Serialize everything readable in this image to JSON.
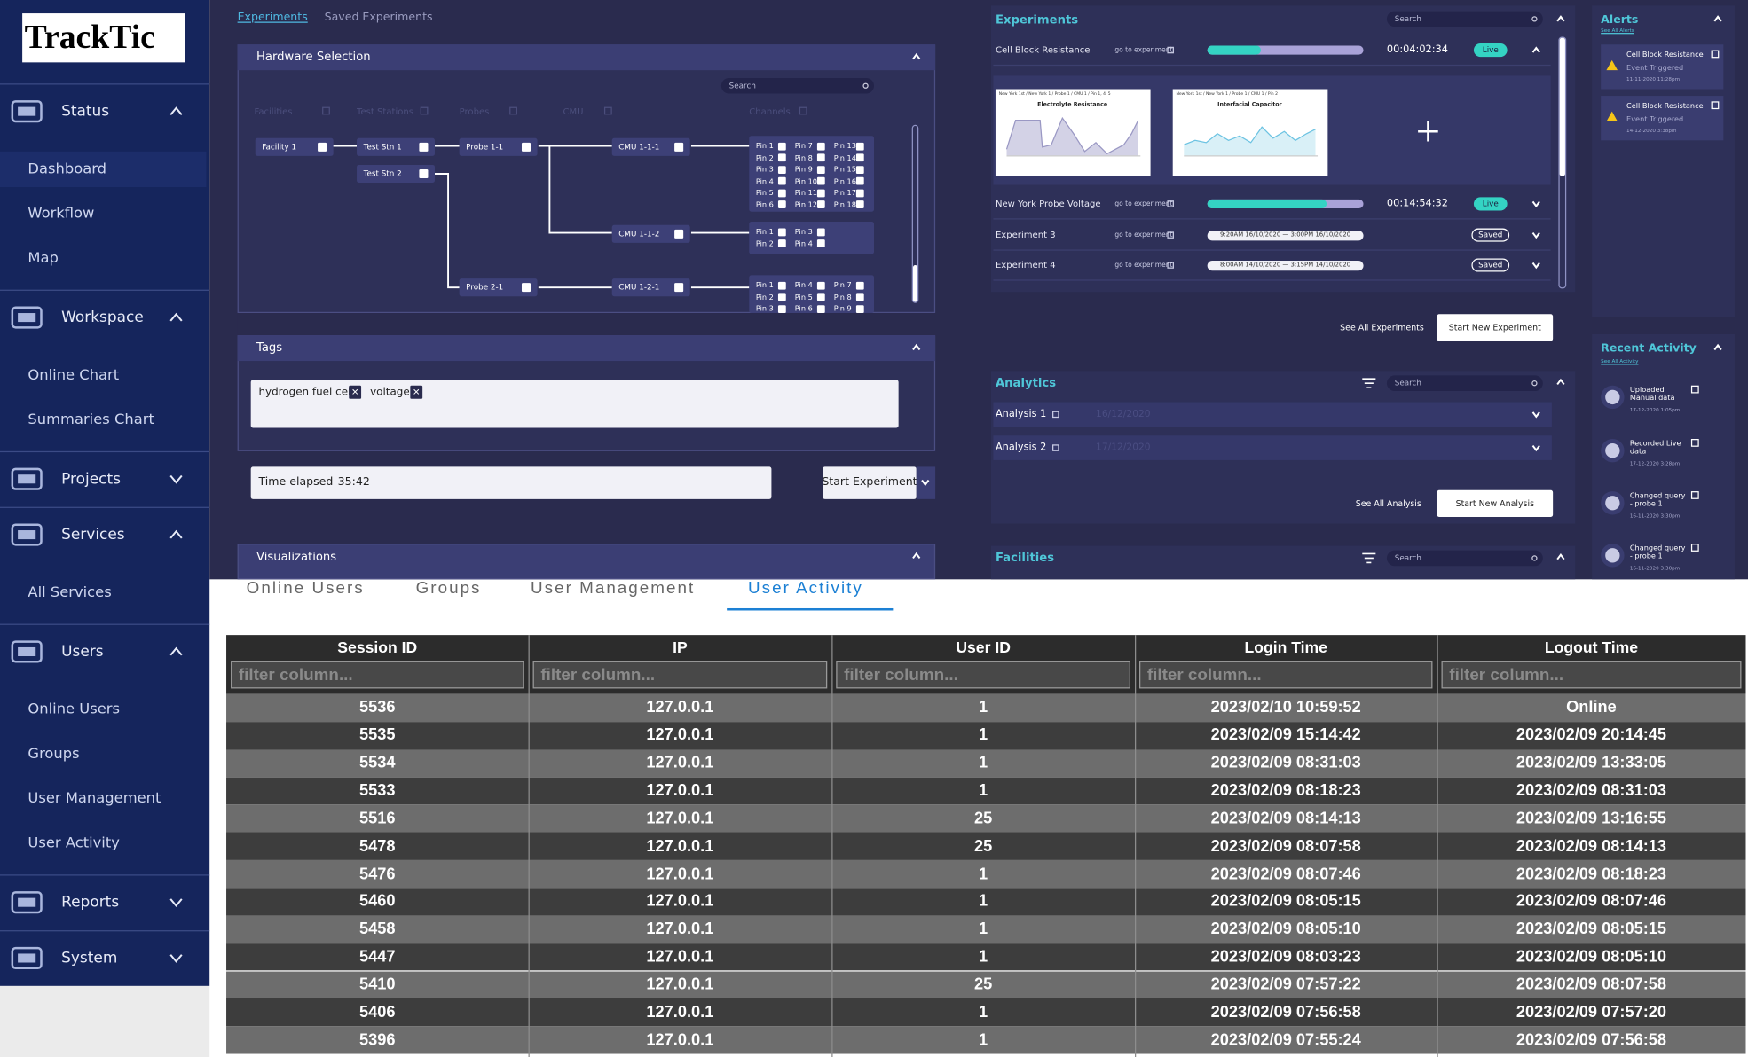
{
  "sidebar": {
    "logo": "TrackTic",
    "sections": [
      {
        "label": "Status",
        "expanded": true,
        "items": [
          "Dashboard",
          "Workflow",
          "Map"
        ]
      },
      {
        "label": "Workspace",
        "expanded": true,
        "items": [
          "Online Chart",
          "Summaries Chart"
        ]
      },
      {
        "label": "Projects",
        "expanded": false,
        "items": []
      },
      {
        "label": "Services",
        "expanded": true,
        "items": [
          "All Services"
        ]
      },
      {
        "label": "Users",
        "expanded": true,
        "items": [
          "Online Users",
          "Groups",
          "User Management",
          "User Activity"
        ]
      },
      {
        "label": "Reports",
        "expanded": false,
        "items": []
      },
      {
        "label": "System",
        "expanded": false,
        "items": []
      }
    ]
  },
  "dashboard": {
    "tabs": [
      "Experiments",
      "Saved Experiments"
    ],
    "hardware": {
      "title": "Hardware Selection",
      "search": "Search",
      "columns": [
        "Facilities",
        "Test Stations",
        "Probes",
        "CMU",
        "Channels"
      ],
      "nodes": [
        "Facility 1",
        "Test Stn 1",
        "Test Stn 2",
        "Probe 1-1",
        "Probe 2-1",
        "CMU 1-1-1",
        "CMU 1-1-2",
        "CMU 1-2-1"
      ],
      "pin_groups": [
        [
          "Pin 1",
          "Pin 2",
          "Pin 3",
          "Pin 4",
          "Pin 5",
          "Pin 6",
          "Pin 7",
          "Pin 8",
          "Pin 9",
          "Pin 10",
          "Pin 11",
          "Pin 12",
          "Pin 13",
          "Pin 14",
          "Pin 15",
          "Pin 16",
          "Pin 17",
          "Pin 18"
        ],
        [
          "Pin 1",
          "Pin 2",
          "Pin 3",
          "Pin 4"
        ],
        [
          "Pin 1",
          "Pin 2",
          "Pin 3",
          "Pin 4",
          "Pin 5",
          "Pin 6",
          "Pin 7",
          "Pin 8",
          "Pin 9"
        ]
      ]
    },
    "tags": {
      "title": "Tags",
      "items": [
        "hydrogen fuel cell",
        "voltage"
      ]
    },
    "timer": {
      "label": "Time elapsed",
      "value": "35:42"
    },
    "start_button": "Start Experiment",
    "visualizations": "Visualizations",
    "experiments": {
      "title": "Experiments",
      "search": "Search",
      "link": "go to experiment",
      "rows": [
        {
          "name": "Cell Block Resistance",
          "time": "00:04:02:34",
          "status": "Live"
        },
        {
          "name": "New York Probe Voltage",
          "time": "00:14:54:32",
          "status": "Live"
        },
        {
          "name": "Experiment 3",
          "range": "9:20AM 16/10/2020 — 3:00PM 16/10/2020",
          "status": "Saved"
        },
        {
          "name": "Experiment 4",
          "range": "8:00AM 14/10/2020 — 3:15PM 14/10/2020",
          "status": "Saved"
        }
      ],
      "charts": [
        {
          "caption": "New York 1st / New York 1 / Probe 1 / CMU 1 / Pin 1, 4, 5",
          "title": "Electrolyte Resistance"
        },
        {
          "caption": "New York 1st / New York 1 / Probe 1 / CMU 1 / Pin 2",
          "title": "Interfacial Capacitor"
        }
      ],
      "see_all": "See All Experiments",
      "button": "Start New Experiment"
    },
    "analytics": {
      "title": "Analytics",
      "search": "Search",
      "rows": [
        {
          "name": "Analysis 1",
          "date": "16/12/2020"
        },
        {
          "name": "Analysis 2",
          "date": "17/12/2020"
        }
      ],
      "see_all": "See All Analysis",
      "button": "Start New Analysis"
    },
    "facilities": {
      "title": "Facilities",
      "search": "Search"
    },
    "alerts": {
      "title": "Alerts",
      "see_all": "See All Alerts",
      "items": [
        {
          "title": "Cell Block Resistance",
          "status": "Event Triggered",
          "time": "11-11-2020 11:28pm"
        },
        {
          "title": "Cell Block Resistance",
          "status": "Event Triggered",
          "time": "14-12-2020 3:38pm"
        }
      ]
    },
    "activity": {
      "title": "Recent Activity",
      "see_all": "See All Activity",
      "items": [
        {
          "text": "Uploaded Manual data",
          "time": "17-12-2020 1:05pm"
        },
        {
          "text": "Recorded Live data",
          "time": "17-12-2020 3:28pm"
        },
        {
          "text": "Changed query - probe 1",
          "time": "16-11-2020 3:30pm"
        },
        {
          "text": "Changed query - probe 1",
          "time": "16-11-2020 3:30pm"
        }
      ]
    }
  },
  "bottom_tabs": {
    "items": [
      "Online Users",
      "Groups",
      "User Management",
      "User Activity"
    ],
    "active": 3
  },
  "table": {
    "columns": [
      "Session ID",
      "IP",
      "User ID",
      "Login Time",
      "Logout Time"
    ],
    "filter_placeholder": "filter column...",
    "rows": [
      [
        "5536",
        "127.0.0.1",
        "1",
        "2023/02/10 10:59:52",
        "Online"
      ],
      [
        "5535",
        "127.0.0.1",
        "1",
        "2023/02/09 15:14:42",
        "2023/02/09 20:14:45"
      ],
      [
        "5534",
        "127.0.0.1",
        "1",
        "2023/02/09 08:31:03",
        "2023/02/09 13:33:05"
      ],
      [
        "5533",
        "127.0.0.1",
        "1",
        "2023/02/09 08:18:23",
        "2023/02/09 08:31:03"
      ],
      [
        "5516",
        "127.0.0.1",
        "25",
        "2023/02/09 08:14:13",
        "2023/02/09 13:16:55"
      ],
      [
        "5478",
        "127.0.0.1",
        "25",
        "2023/02/09 08:07:58",
        "2023/02/09 08:14:13"
      ],
      [
        "5476",
        "127.0.0.1",
        "1",
        "2023/02/09 08:07:46",
        "2023/02/09 08:18:23"
      ],
      [
        "5460",
        "127.0.0.1",
        "1",
        "2023/02/09 08:05:15",
        "2023/02/09 08:07:46"
      ],
      [
        "5458",
        "127.0.0.1",
        "1",
        "2023/02/09 08:05:10",
        "2023/02/09 08:05:15"
      ],
      [
        "5447",
        "127.0.0.1",
        "1",
        "2023/02/09 08:03:23",
        "2023/02/09 08:05:10"
      ],
      [
        "5410",
        "127.0.0.1",
        "25",
        "2023/02/09 07:57:22",
        "2023/02/09 08:07:58"
      ],
      [
        "5406",
        "127.0.0.1",
        "1",
        "2023/02/09 07:56:58",
        "2023/02/09 07:57:20"
      ],
      [
        "5396",
        "127.0.0.1",
        "1",
        "2023/02/09 07:55:24",
        "2023/02/09 07:56:58"
      ]
    ]
  }
}
